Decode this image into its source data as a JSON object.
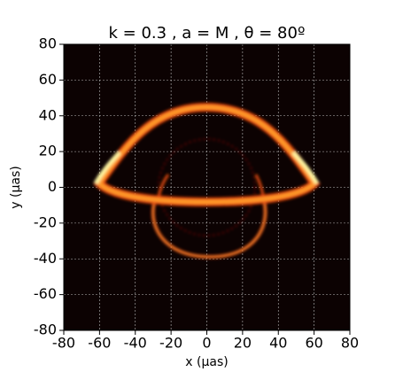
{
  "chart_data": {
    "type": "image",
    "title": "k = 0.3 , a = M ,  θ = 80º",
    "xlabel": "x (μas)",
    "ylabel": "y (μas)",
    "xlim": [
      -80,
      80
    ],
    "ylim": [
      -80,
      80
    ],
    "xticks": [
      -80,
      -60,
      -40,
      -20,
      0,
      20,
      40,
      60,
      80
    ],
    "yticks": [
      -80,
      -60,
      -40,
      -20,
      0,
      20,
      40,
      60,
      80
    ],
    "grid": true
  }
}
